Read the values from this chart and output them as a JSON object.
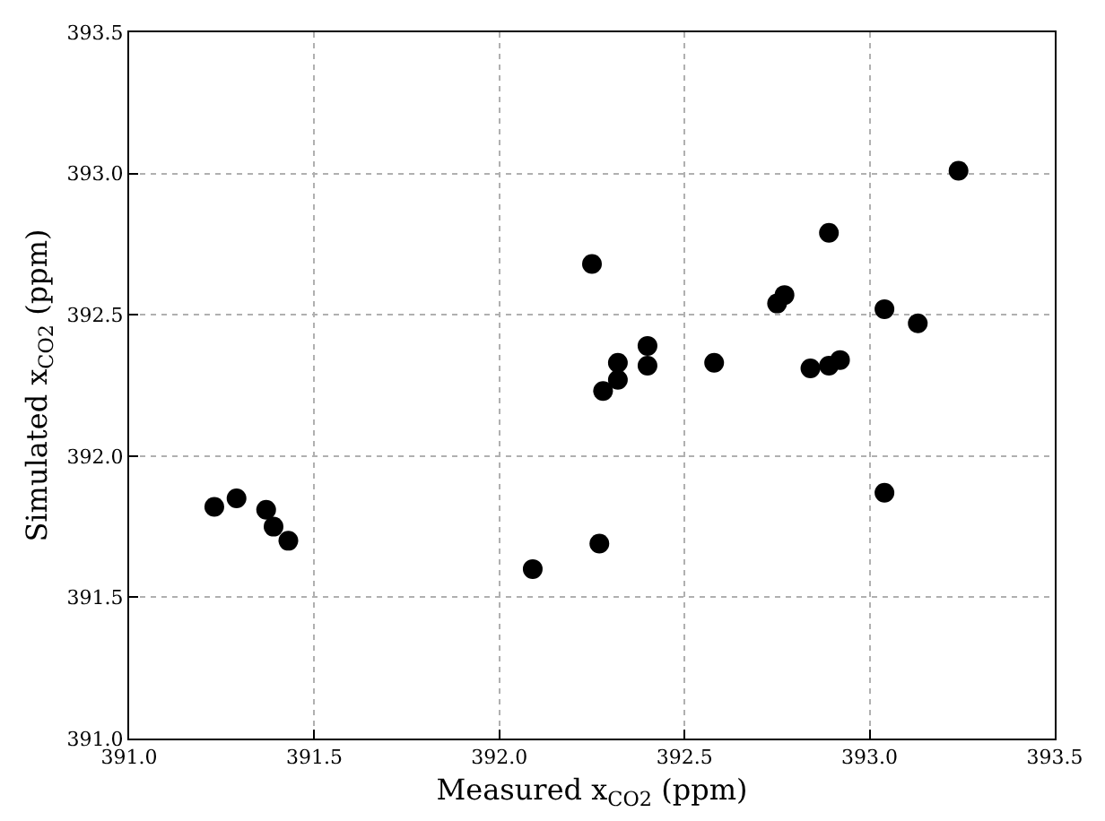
{
  "chart_data": {
    "type": "scatter",
    "xlabel": "Measured x$_{CO2}$ (ppm)",
    "ylabel": "Simulated x$_{CO2}$ (ppm)",
    "xlim": [
      391.0,
      393.5
    ],
    "xticks": [
      {
        "value": 391.0,
        "label": "391.0"
      },
      {
        "value": 391.5,
        "label": "391.5"
      },
      {
        "value": 392.0,
        "label": "392.0"
      },
      {
        "value": 392.5,
        "label": "392.5"
      },
      {
        "value": 393.0,
        "label": "393.0"
      },
      {
        "value": 393.5,
        "label": "393.5"
      }
    ],
    "ylim": [
      391.0,
      393.5
    ],
    "yticks": [
      {
        "value": 391.0,
        "label": "391.0"
      },
      {
        "value": 391.5,
        "label": "391.5"
      },
      {
        "value": 392.0,
        "label": "392.0"
      },
      {
        "value": 392.5,
        "label": "392.5"
      },
      {
        "value": 393.0,
        "label": "393.0"
      },
      {
        "value": 393.5,
        "label": "393.5"
      }
    ],
    "grid": true,
    "marker": "circle",
    "series": [
      {
        "color": "#000000",
        "x": [
          391.23,
          391.29,
          391.37,
          391.39,
          391.43,
          392.09,
          392.25,
          392.27,
          392.28,
          392.32,
          392.32,
          392.4,
          392.4,
          392.58,
          392.75,
          392.77,
          392.84,
          392.89,
          392.92,
          392.89,
          393.04,
          393.04,
          393.13,
          393.24
        ],
        "values": [
          391.82,
          391.85,
          391.81,
          391.75,
          391.7,
          391.6,
          392.68,
          391.69,
          392.23,
          392.27,
          392.33,
          392.39,
          392.32,
          392.33,
          392.54,
          392.57,
          392.31,
          392.32,
          392.34,
          392.79,
          392.52,
          391.87,
          392.47,
          393.01
        ]
      }
    ]
  }
}
